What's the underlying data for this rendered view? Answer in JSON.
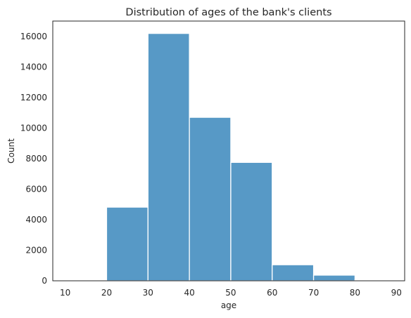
{
  "chart_data": {
    "type": "bar",
    "title": "Distribution of ages of the bank's clients",
    "xlabel": "age",
    "ylabel": "Count",
    "bins": [
      {
        "start": 10,
        "end": 20,
        "count": 0
      },
      {
        "start": 20,
        "end": 30,
        "count": 4820
      },
      {
        "start": 30,
        "end": 40,
        "count": 16190
      },
      {
        "start": 40,
        "end": 50,
        "count": 10700
      },
      {
        "start": 50,
        "end": 60,
        "count": 7750
      },
      {
        "start": 60,
        "end": 70,
        "count": 1050
      },
      {
        "start": 70,
        "end": 80,
        "count": 370
      },
      {
        "start": 80,
        "end": 90,
        "count": 60
      }
    ],
    "xlim": [
      7,
      92
    ],
    "ylim": [
      0,
      17000
    ],
    "xticks": [
      10,
      20,
      30,
      40,
      50,
      60,
      70,
      80,
      90
    ],
    "yticks": [
      0,
      2000,
      4000,
      6000,
      8000,
      10000,
      12000,
      14000,
      16000
    ],
    "grid": false,
    "bar_color": "#5799c6"
  }
}
